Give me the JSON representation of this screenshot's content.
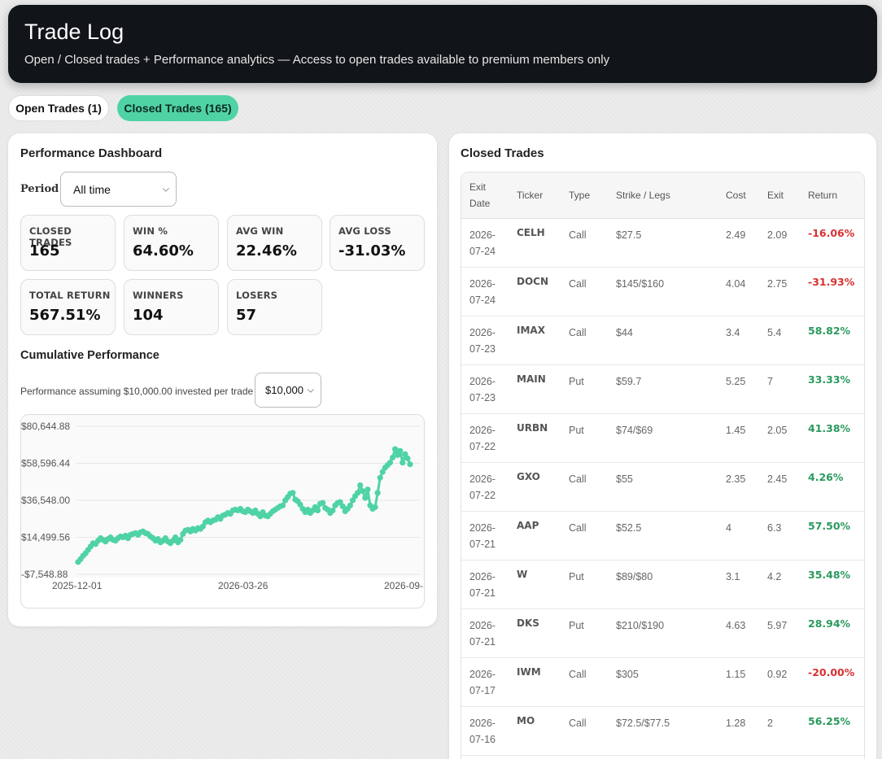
{
  "header": {
    "title": "Trade Log",
    "subtitle": "Open / Closed trades + Performance analytics — Access to open trades available to premium members only"
  },
  "tabs": {
    "open": "Open Trades (1)",
    "closed": "Closed Trades (165)"
  },
  "dashboard": {
    "title": "Performance Dashboard",
    "period_label": "Period",
    "period_value": "All time",
    "stats": [
      {
        "label": "CLOSED TRADES",
        "value": "165"
      },
      {
        "label": "WIN %",
        "value": "64.60%"
      },
      {
        "label": "AVG WIN",
        "value": "22.46%"
      },
      {
        "label": "AVG LOSS",
        "value": "-31.03%"
      },
      {
        "label": "TOTAL RETURN",
        "value": "567.51%"
      },
      {
        "label": "WINNERS",
        "value": "104"
      },
      {
        "label": "LOSERS",
        "value": "57"
      }
    ],
    "cumulative_title": "Cumulative Performance",
    "assumption_text": "Performance assuming $10,000.00 invested per trade",
    "amount_value": "$10,000"
  },
  "chart_data": {
    "type": "line",
    "title": "",
    "xlabel": "",
    "ylabel": "",
    "x_tick_labels": [
      "2025-12-01",
      "2026-03-26",
      "2026-09-"
    ],
    "y_tick_labels": [
      "$80,644.88",
      "$58,596.44",
      "$36,548.00",
      "$14,499.56",
      "-$7,548.88"
    ],
    "ylim": [
      -7548.88,
      80644.88
    ],
    "grid": true,
    "color": "#4fd3a5",
    "values": [
      -200,
      1500,
      3500,
      5000,
      7000,
      9000,
      11000,
      10500,
      12500,
      14000,
      13000,
      12000,
      13500,
      14500,
      13000,
      12500,
      14000,
      15000,
      14500,
      15500,
      14000,
      16000,
      16500,
      17000,
      16000,
      17500,
      18000,
      17000,
      16500,
      15000,
      14000,
      12500,
      13500,
      11500,
      12500,
      14000,
      12000,
      11000,
      12500,
      14500,
      11500,
      13000,
      16500,
      18500,
      19000,
      18000,
      19500,
      18500,
      20000,
      19500,
      21000,
      23500,
      24500,
      23500,
      24500,
      25000,
      26500,
      25500,
      27500,
      28000,
      29000,
      28500,
      30500,
      31000,
      30500,
      31500,
      30000,
      29500,
      31000,
      30000,
      29000,
      30500,
      28500,
      27000,
      29500,
      27500,
      27000,
      28500,
      30000,
      31000,
      32000,
      33000,
      33500,
      36500,
      38500,
      40500,
      41000,
      37000,
      36000,
      34000,
      31500,
      29500,
      31000,
      29000,
      30500,
      32500,
      30500,
      34500,
      35000,
      32000,
      31000,
      29000,
      30500,
      33500,
      35000,
      35500,
      33000,
      30000,
      31500,
      33500,
      36500,
      39000,
      41000,
      45500,
      42000,
      38000,
      43000,
      33500,
      31500,
      32500,
      41000,
      50000,
      53500,
      56000,
      57500,
      59000,
      62000,
      67000,
      63500,
      66000,
      59000,
      64000,
      61500,
      58000
    ]
  },
  "trades": {
    "title": "Closed Trades",
    "headers": {
      "exit_line1": "Exit",
      "exit_line2": "Date",
      "ticker": "Ticker",
      "type": "Type",
      "strike": "Strike / Legs",
      "cost": "Cost",
      "exit": "Exit",
      "return": "Return"
    },
    "rows": [
      {
        "d1": "2026-",
        "d2": "07-24",
        "ticker": "CELH",
        "type": "Call",
        "strike": "$27.5",
        "cost": "2.49",
        "exit": "2.09",
        "ret": "-16.06%",
        "pos": false
      },
      {
        "d1": "2026-",
        "d2": "07-24",
        "ticker": "DOCN",
        "type": "Call",
        "strike": "$145/$160",
        "cost": "4.04",
        "exit": "2.75",
        "ret": "-31.93%",
        "pos": false
      },
      {
        "d1": "2026-",
        "d2": "07-23",
        "ticker": "IMAX",
        "type": "Call",
        "strike": "$44",
        "cost": "3.4",
        "exit": "5.4",
        "ret": "58.82%",
        "pos": true
      },
      {
        "d1": "2026-",
        "d2": "07-23",
        "ticker": "MAIN",
        "type": "Put",
        "strike": "$59.7",
        "cost": "5.25",
        "exit": "7",
        "ret": "33.33%",
        "pos": true
      },
      {
        "d1": "2026-",
        "d2": "07-22",
        "ticker": "URBN",
        "type": "Put",
        "strike": "$74/$69",
        "cost": "1.45",
        "exit": "2.05",
        "ret": "41.38%",
        "pos": true
      },
      {
        "d1": "2026-",
        "d2": "07-22",
        "ticker": "GXO",
        "type": "Call",
        "strike": "$55",
        "cost": "2.35",
        "exit": "2.45",
        "ret": "4.26%",
        "pos": true
      },
      {
        "d1": "2026-",
        "d2": "07-21",
        "ticker": "AAP",
        "type": "Call",
        "strike": "$52.5",
        "cost": "4",
        "exit": "6.3",
        "ret": "57.50%",
        "pos": true
      },
      {
        "d1": "2026-",
        "d2": "07-21",
        "ticker": "W",
        "type": "Put",
        "strike": "$89/$80",
        "cost": "3.1",
        "exit": "4.2",
        "ret": "35.48%",
        "pos": true
      },
      {
        "d1": "2026-",
        "d2": "07-21",
        "ticker": "DKS",
        "type": "Put",
        "strike": "$210/$190",
        "cost": "4.63",
        "exit": "5.97",
        "ret": "28.94%",
        "pos": true
      },
      {
        "d1": "2026-",
        "d2": "07-17",
        "ticker": "IWM",
        "type": "Call",
        "strike": "$305",
        "cost": "1.15",
        "exit": "0.92",
        "ret": "-20.00%",
        "pos": false
      },
      {
        "d1": "2026-",
        "d2": "07-16",
        "ticker": "MO",
        "type": "Call",
        "strike": "$72.5/$77.5",
        "cost": "1.28",
        "exit": "2",
        "ret": "56.25%",
        "pos": true
      }
    ]
  }
}
